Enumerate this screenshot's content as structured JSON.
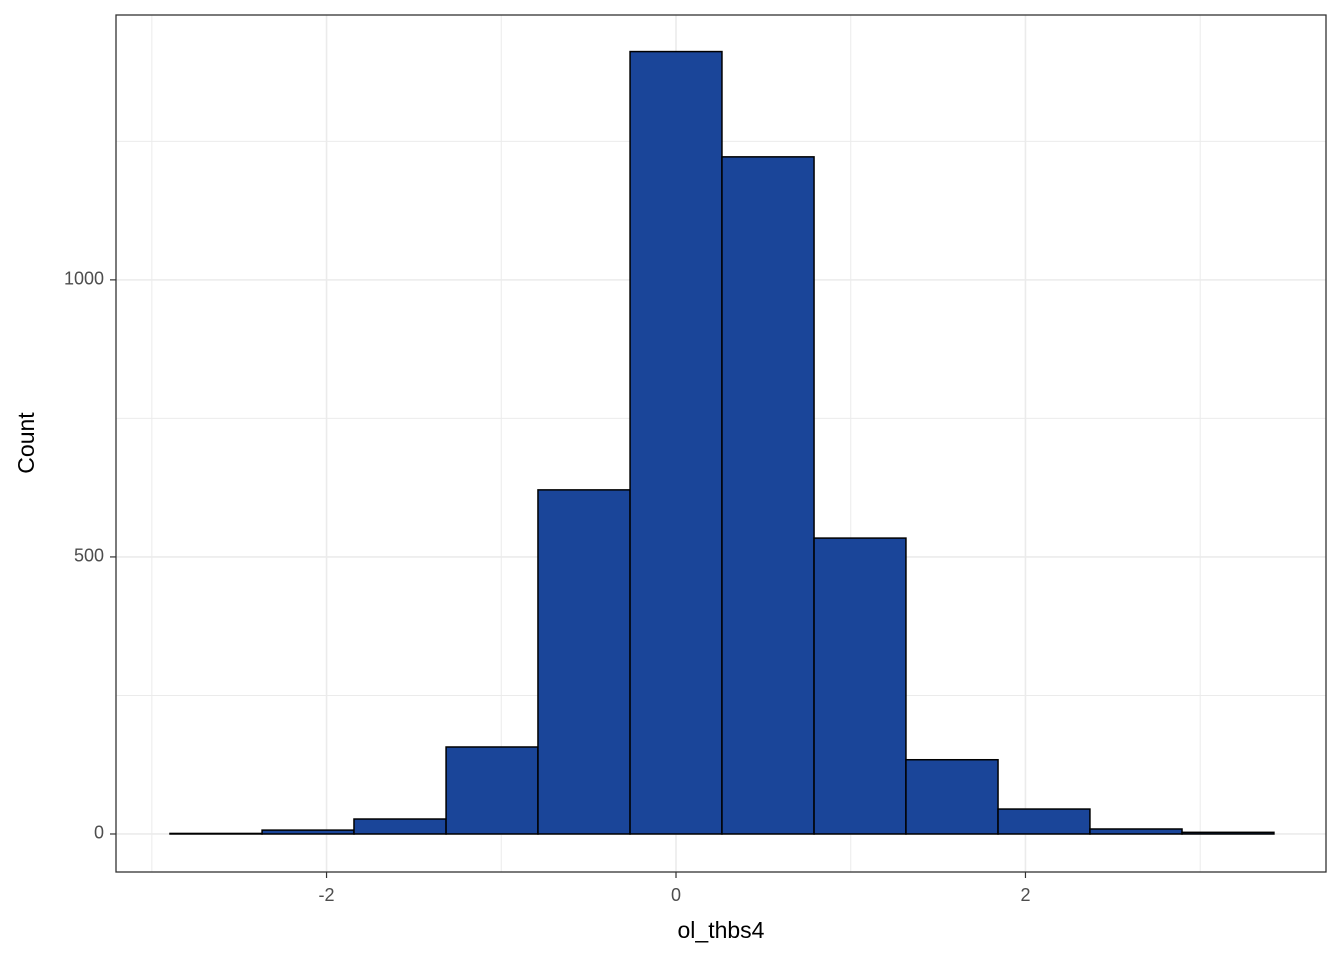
{
  "chart_data": {
    "type": "histogram",
    "x_label": "ol_thbs4",
    "y_label": "Count",
    "bins": [
      -2.896,
      -2.369,
      -1.843,
      -1.316,
      -0.79,
      -0.263,
      0.263,
      0.79,
      1.316,
      1.843,
      2.369,
      2.896,
      3.422
    ],
    "values": [
      1,
      7,
      27,
      157,
      621,
      1412,
      1222,
      534,
      134,
      45,
      9,
      3
    ],
    "color": "#1a4599",
    "edge_color": "#000000",
    "xlim": [
      -3.205,
      3.72
    ],
    "ylim": [
      -68.6,
      1478
    ],
    "xticks": [
      -2,
      0,
      2
    ],
    "yticks": [
      0,
      500,
      1000
    ],
    "grid": true
  }
}
